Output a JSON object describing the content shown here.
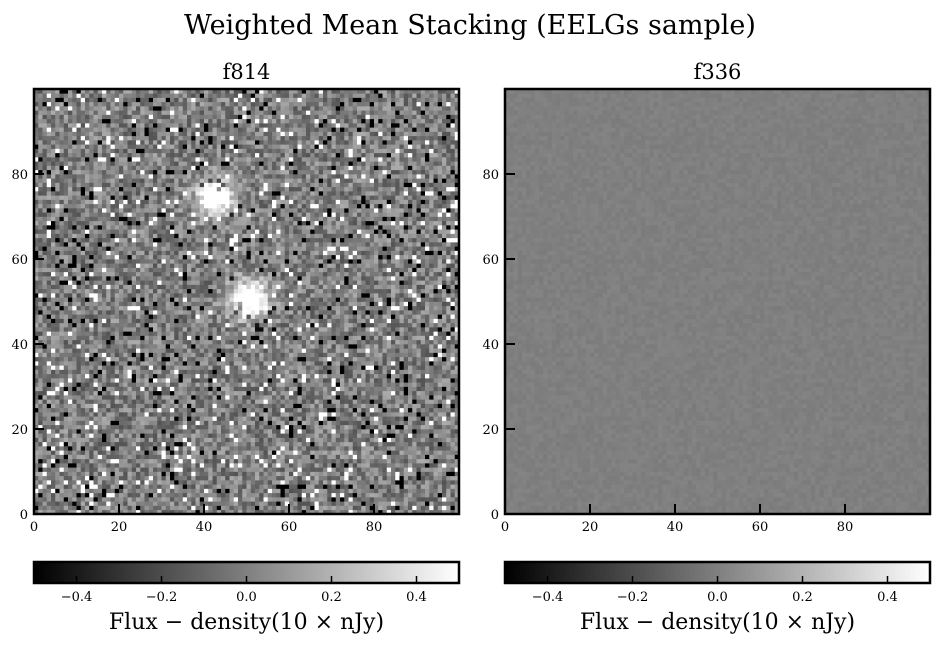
{
  "figure": {
    "title": "Weighted Mean Stacking (EELGs sample)"
  },
  "chart_data": [
    {
      "type": "heatmap",
      "title": "f814",
      "x_ticks": [
        0,
        20,
        40,
        60,
        80
      ],
      "y_ticks": [
        0,
        20,
        40,
        60,
        80
      ],
      "xlim": [
        0,
        100
      ],
      "ylim": [
        0,
        100
      ],
      "colormap": "gray",
      "colorbar": {
        "label": "Flux − density(10 × nJy)",
        "range": [
          -0.5,
          0.5
        ],
        "ticks": [
          -0.4,
          -0.2,
          0.0,
          0.2,
          0.4
        ],
        "tick_labels": [
          "−0.4",
          "−0.2",
          "0.0",
          "0.2",
          "0.4"
        ]
      },
      "image": {
        "grid_size": 100,
        "pattern": "salt-and-pepper noise",
        "bright_sources": [
          {
            "x": 50,
            "y": 50,
            "value": 0.5
          },
          {
            "x": 42,
            "y": 74,
            "value": 0.45
          }
        ]
      }
    },
    {
      "type": "heatmap",
      "title": "f336",
      "x_ticks": [
        0,
        20,
        40,
        60,
        80
      ],
      "y_ticks": [
        0,
        20,
        40,
        60,
        80
      ],
      "xlim": [
        0,
        100
      ],
      "ylim": [
        0,
        100
      ],
      "colormap": "gray",
      "colorbar": {
        "label": "Flux − density(10 × nJy)",
        "range": [
          -0.5,
          0.5
        ],
        "ticks": [
          -0.4,
          -0.2,
          0.0,
          0.2,
          0.4
        ],
        "tick_labels": [
          "−0.4",
          "−0.2",
          "0.0",
          "0.2",
          "0.4"
        ]
      },
      "image": {
        "grid_size": 100,
        "pattern": "uniform low-amplitude noise",
        "bright_sources": []
      }
    }
  ]
}
